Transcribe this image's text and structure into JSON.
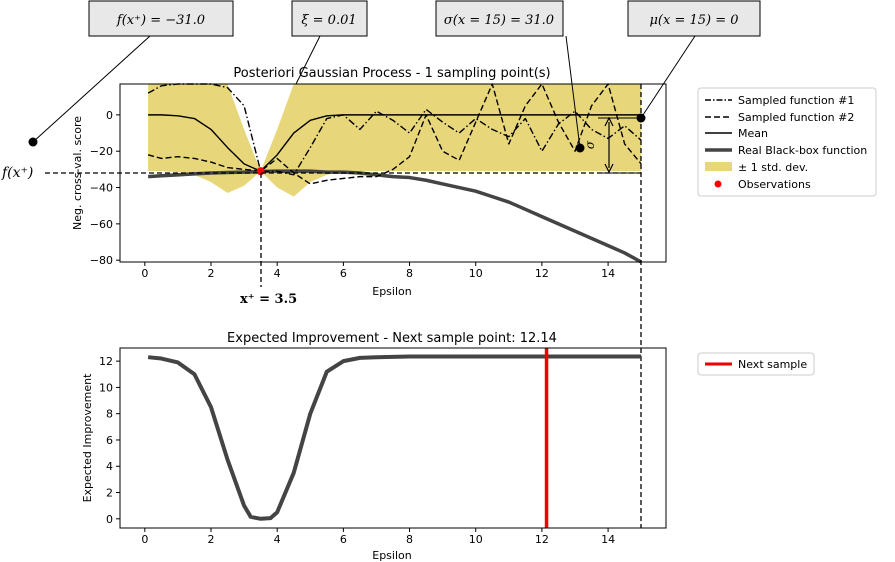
{
  "annotations": {
    "f_label": "f(x⁺) = −31.0",
    "xi_label": "ξ = 0.01",
    "sigma_label": "σ(x = 15) = 31.0",
    "mu_label": "μ(x = 15) = 0",
    "fxplus_side_label": "f(x⁺)",
    "xplus_label": "x⁺ = 3.5",
    "sigma_symbol": "σ"
  },
  "chart_data": [
    {
      "type": "line",
      "title": "Posteriori Gaussian Process - 1 sampling point(s)",
      "xlabel": "Epsilon",
      "ylabel": "Neg. cross-val. score",
      "xlim": [
        -0.75,
        15.75
      ],
      "ylim": [
        -81,
        17
      ],
      "xticks": [
        0,
        2,
        4,
        6,
        8,
        10,
        12,
        14
      ],
      "yticks": [
        0,
        -20,
        -40,
        -60,
        -80
      ],
      "grid": false,
      "legend_position": "outside-right",
      "legend": [
        "Sampled function #1",
        "Sampled function #2",
        "Mean",
        "Real Black-box function",
        "± 1 std. dev.",
        "Observations"
      ],
      "colors": {
        "band": "#e8d77a",
        "real": "#444444",
        "observation": "#ff0000",
        "line": "#000000"
      },
      "x": [
        0.1,
        0.5,
        1.0,
        1.5,
        2.0,
        2.5,
        3.0,
        3.5,
        4.0,
        4.5,
        5.0,
        5.5,
        6.0,
        6.5,
        7.0,
        7.5,
        8.0,
        8.5,
        9.0,
        9.5,
        10.0,
        10.5,
        11.0,
        11.5,
        12.0,
        12.5,
        13.0,
        13.5,
        14.0,
        14.5,
        15.0
      ],
      "series": [
        {
          "name": "Mean",
          "values": [
            0,
            0,
            -0.5,
            -2,
            -8,
            -18,
            -27,
            -31,
            -22,
            -10,
            -3,
            -0.5,
            0,
            0,
            0,
            0,
            0,
            0,
            0,
            0,
            0,
            0,
            0,
            0,
            0,
            0,
            0,
            0,
            0,
            0,
            0
          ]
        },
        {
          "name": "Real Black-box function",
          "values": [
            -34,
            -33.5,
            -33,
            -32.5,
            -32,
            -31.7,
            -31.5,
            -31.2,
            -31,
            -31,
            -31,
            -31.5,
            -31.5,
            -32,
            -33,
            -34,
            -34.5,
            -36,
            -38,
            -40,
            -42,
            -45,
            -48,
            -52,
            -56,
            -60,
            -64,
            -68,
            -72,
            -76,
            -81
          ]
        },
        {
          "name": "Sampled function #1",
          "values": [
            12,
            16,
            17,
            17,
            17,
            15,
            5,
            -31,
            -31,
            -33,
            -18,
            -2,
            0,
            -8,
            2,
            -3,
            -10,
            3,
            -4,
            -10,
            -2,
            -8,
            -12,
            -2,
            -20,
            -5,
            2,
            -8,
            -13,
            -6,
            -14
          ]
        },
        {
          "name": "Sampled function #2",
          "values": [
            -22,
            -24,
            -23,
            -24,
            -26,
            -29,
            -30,
            -31,
            -24,
            -32,
            -38,
            -36,
            -35,
            -34,
            -34,
            -30,
            -23,
            0,
            -20,
            -25,
            -4,
            17,
            -16,
            5,
            17,
            -4,
            -20,
            5,
            17,
            -16,
            -27
          ]
        },
        {
          "name": "± 1 std. dev.",
          "upper": [
            17,
            17,
            17,
            17,
            17,
            17,
            -8,
            -31,
            -8,
            17,
            17,
            17,
            17,
            17,
            17,
            17,
            17,
            17,
            17,
            17,
            17,
            17,
            17,
            17,
            17,
            17,
            17,
            17,
            17,
            17,
            17
          ],
          "lower": [
            -31,
            -31,
            -31.5,
            -33,
            -37,
            -43,
            -39,
            -31,
            -40,
            -45,
            -37,
            -33,
            -31,
            -31,
            -31,
            -31,
            -31,
            -31,
            -31,
            -31,
            -31,
            -31,
            -31,
            -31,
            -31,
            -31,
            -31,
            -31,
            -31,
            -31,
            -31
          ]
        }
      ],
      "observations": [
        {
          "x": 3.5,
          "y": -31
        }
      ]
    },
    {
      "type": "line",
      "title": "Expected Improvement - Next sample point: 12.14",
      "xlabel": "Epsilon",
      "ylabel": "Expected Improvement",
      "xlim": [
        -0.75,
        15.75
      ],
      "ylim": [
        -0.7,
        13
      ],
      "xticks": [
        0,
        2,
        4,
        6,
        8,
        10,
        12,
        14
      ],
      "yticks": [
        0,
        2,
        4,
        6,
        8,
        10,
        12
      ],
      "grid": false,
      "legend_position": "outside-right",
      "legend": [
        "Next sample"
      ],
      "colors": {
        "ei": "#444444",
        "next": "#ee0000"
      },
      "x": [
        0.1,
        0.5,
        1.0,
        1.5,
        2.0,
        2.5,
        3.0,
        3.2,
        3.5,
        3.8,
        4.0,
        4.5,
        5.0,
        5.5,
        6.0,
        6.5,
        7.0,
        8.0,
        9.0,
        10.0,
        11.0,
        12.0,
        13.0,
        14.0,
        15.0
      ],
      "series": [
        {
          "name": "Expected Improvement",
          "values": [
            12.3,
            12.2,
            11.9,
            11.0,
            8.5,
            4.5,
            1.0,
            0.15,
            0,
            0.05,
            0.5,
            3.5,
            8.0,
            11.2,
            12.0,
            12.25,
            12.3,
            12.35,
            12.35,
            12.35,
            12.35,
            12.35,
            12.35,
            12.35,
            12.35
          ]
        }
      ],
      "next_sample": 12.14
    }
  ]
}
